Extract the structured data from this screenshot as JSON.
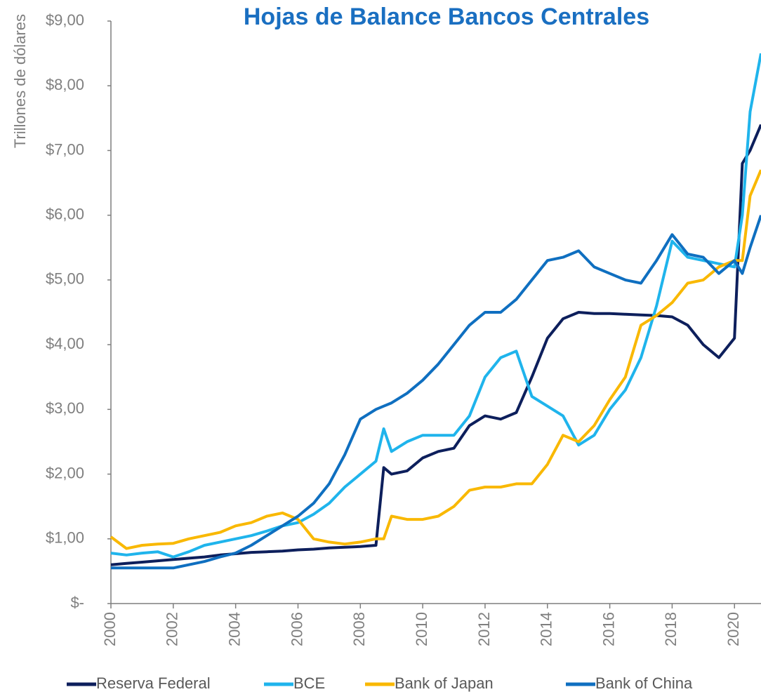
{
  "chart_data": {
    "type": "line",
    "title": "Hojas de Balance Bancos Centrales",
    "y_label": "Trillones de dólares",
    "x": [
      2000,
      2000.5,
      2001,
      2001.5,
      2002,
      2002.5,
      2003,
      2003.5,
      2004,
      2004.5,
      2005,
      2005.5,
      2006,
      2006.5,
      2007,
      2007.5,
      2008,
      2008.5,
      2008.75,
      2009,
      2009.5,
      2010,
      2010.5,
      2011,
      2011.5,
      2012,
      2012.5,
      2013,
      2013.5,
      2014,
      2014.5,
      2015,
      2015.5,
      2016,
      2016.5,
      2017,
      2017.5,
      2018,
      2018.5,
      2019,
      2019.5,
      2020,
      2020.25,
      2020.5,
      2020.85
    ],
    "series": [
      {
        "name": "Reserva Federal",
        "color": "#0d1f5c",
        "values": [
          0.6,
          0.62,
          0.64,
          0.66,
          0.68,
          0.7,
          0.72,
          0.75,
          0.77,
          0.79,
          0.8,
          0.81,
          0.83,
          0.84,
          0.86,
          0.87,
          0.88,
          0.9,
          2.1,
          2.0,
          2.05,
          2.25,
          2.35,
          2.4,
          2.75,
          2.9,
          2.85,
          2.95,
          3.5,
          4.1,
          4.4,
          4.5,
          4.48,
          4.48,
          4.47,
          4.46,
          4.45,
          4.43,
          4.3,
          4.0,
          3.8,
          4.1,
          6.8,
          7.0,
          7.4
        ]
      },
      {
        "name": "BCE",
        "color": "#1fb4ec",
        "values": [
          0.78,
          0.75,
          0.78,
          0.8,
          0.72,
          0.8,
          0.9,
          0.95,
          1.0,
          1.05,
          1.12,
          1.2,
          1.25,
          1.38,
          1.55,
          1.8,
          2.0,
          2.2,
          2.7,
          2.35,
          2.5,
          2.6,
          2.6,
          2.6,
          2.9,
          3.5,
          3.8,
          3.9,
          3.2,
          3.05,
          2.9,
          2.45,
          2.6,
          3.0,
          3.3,
          3.8,
          4.6,
          5.6,
          5.35,
          5.3,
          5.25,
          5.2,
          6.0,
          7.6,
          8.5
        ]
      },
      {
        "name": "Bank of Japan",
        "color": "#f9b800",
        "values": [
          1.03,
          0.85,
          0.9,
          0.92,
          0.93,
          1.0,
          1.05,
          1.1,
          1.2,
          1.25,
          1.35,
          1.4,
          1.3,
          1.0,
          0.95,
          0.92,
          0.95,
          1.0,
          1.0,
          1.35,
          1.3,
          1.3,
          1.35,
          1.5,
          1.75,
          1.8,
          1.8,
          1.85,
          1.85,
          2.15,
          2.6,
          2.5,
          2.75,
          3.15,
          3.5,
          4.3,
          4.45,
          4.65,
          4.95,
          5.0,
          5.2,
          5.3,
          5.3,
          6.3,
          6.7
        ]
      },
      {
        "name": "Bank of China",
        "color": "#0f6fc0",
        "values": [
          0.55,
          0.55,
          0.55,
          0.55,
          0.55,
          0.6,
          0.65,
          0.72,
          0.78,
          0.9,
          1.05,
          1.2,
          1.35,
          1.55,
          1.85,
          2.3,
          2.85,
          3.0,
          3.05,
          3.1,
          3.25,
          3.45,
          3.7,
          4.0,
          4.3,
          4.5,
          4.5,
          4.7,
          5.0,
          5.3,
          5.35,
          5.45,
          5.2,
          5.1,
          5.0,
          4.95,
          5.3,
          5.7,
          5.4,
          5.35,
          5.1,
          5.3,
          5.1,
          5.5,
          6.0
        ]
      }
    ],
    "xlim": [
      2000,
      2020.85
    ],
    "xticks": [
      2000,
      2002,
      2004,
      2006,
      2008,
      2010,
      2012,
      2014,
      2016,
      2018,
      2020
    ],
    "ylim": [
      0,
      9
    ],
    "yticks": [
      {
        "value": 0,
        "label": "$-"
      },
      {
        "value": 1,
        "label": "$1,00"
      },
      {
        "value": 2,
        "label": "$2,00"
      },
      {
        "value": 3,
        "label": "$3,00"
      },
      {
        "value": 4,
        "label": "$4,00"
      },
      {
        "value": 5,
        "label": "$5,00"
      },
      {
        "value": 6,
        "label": "$6,00"
      },
      {
        "value": 7,
        "label": "$7,00"
      },
      {
        "value": 8,
        "label": "$8,00"
      },
      {
        "value": 9,
        "label": "$9,00"
      }
    ],
    "grid": false,
    "legend": "bottom"
  }
}
